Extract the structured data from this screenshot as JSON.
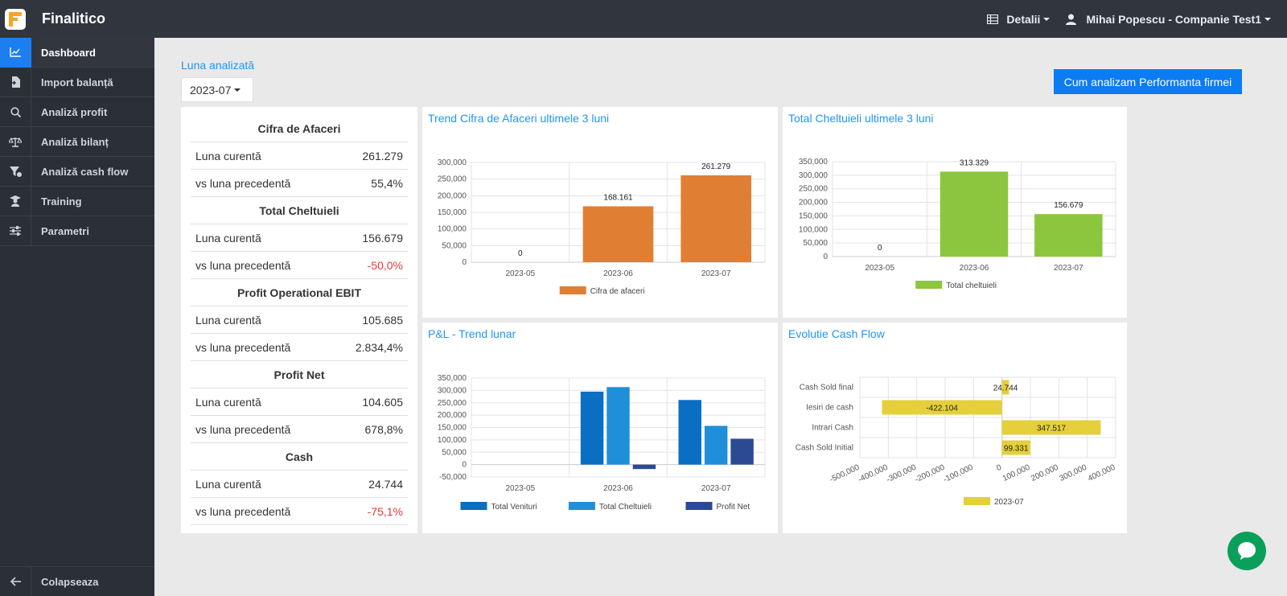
{
  "app": {
    "title": "Finalitico"
  },
  "header": {
    "details": "Detalii",
    "user": "Mihai Popescu - Companie Test1"
  },
  "sidebar": {
    "items": [
      {
        "label": "Dashboard",
        "icon": "line-chart-icon"
      },
      {
        "label": "Import balanță",
        "icon": "file-import-icon"
      },
      {
        "label": "Analiză profit",
        "icon": "search-icon"
      },
      {
        "label": "Analiză bilanț",
        "icon": "balance-scale-icon"
      },
      {
        "label": "Analiză cash flow",
        "icon": "filter-dollar-icon"
      },
      {
        "label": "Training",
        "icon": "graduation-icon"
      },
      {
        "label": "Parametri",
        "icon": "sliders-icon"
      }
    ],
    "collapse": "Colapseaza"
  },
  "month": {
    "label": "Luna analizată",
    "value": "2023-07"
  },
  "cta": "Cum analizam Performanta firmei",
  "kpi": [
    {
      "title": "Cifra de Afaceri",
      "rows": [
        {
          "label": "Luna curentă",
          "value": "261.279"
        },
        {
          "label": "vs luna precedentă",
          "value": "55,4%"
        }
      ]
    },
    {
      "title": "Total Cheltuieli",
      "rows": [
        {
          "label": "Luna curentă",
          "value": "156.679"
        },
        {
          "label": "vs luna precedentă",
          "value": "-50,0%"
        }
      ]
    },
    {
      "title": "Profit Operational EBIT",
      "rows": [
        {
          "label": "Luna curentă",
          "value": "105.685"
        },
        {
          "label": "vs luna precedentă",
          "value": "2.834,4%"
        }
      ]
    },
    {
      "title": "Profit Net",
      "rows": [
        {
          "label": "Luna curentă",
          "value": "104.605"
        },
        {
          "label": "vs luna precedentă",
          "value": "678,8%"
        }
      ]
    },
    {
      "title": "Cash",
      "rows": [
        {
          "label": "Luna curentă",
          "value": "24.744"
        },
        {
          "label": "vs luna precedentă",
          "value": "-75,1%"
        }
      ]
    }
  ],
  "colors": {
    "negative": "#e53935",
    "accent": "#2196f3"
  },
  "chart_data": [
    {
      "id": "trend-ca",
      "type": "bar",
      "title": "Trend Cifra de Afaceri ultimele 3 luni",
      "categories": [
        "2023-05",
        "2023-06",
        "2023-07"
      ],
      "series": [
        {
          "name": "Cifra de afaceri",
          "values": [
            0,
            168161,
            261279
          ],
          "color": "#e07f33"
        }
      ],
      "data_labels": [
        "0",
        "168.161",
        "261.279"
      ],
      "ylim": [
        0,
        300000
      ],
      "yticks": [
        0,
        50000,
        100000,
        150000,
        200000,
        250000,
        300000
      ],
      "ytick_labels": [
        "0",
        "50,000",
        "100,000",
        "150,000",
        "200,000",
        "250,000",
        "300,000"
      ],
      "legend": "bottom"
    },
    {
      "id": "total-chelt",
      "type": "bar",
      "title": "Total Cheltuieli ultimele 3 luni",
      "categories": [
        "2023-05",
        "2023-06",
        "2023-07"
      ],
      "series": [
        {
          "name": "Total cheltuieli",
          "values": [
            0,
            313329,
            156679
          ],
          "color": "#8cc63f"
        }
      ],
      "data_labels": [
        "0",
        "313.329",
        "156.679"
      ],
      "ylim": [
        0,
        350000
      ],
      "yticks": [
        0,
        50000,
        100000,
        150000,
        200000,
        250000,
        300000,
        350000
      ],
      "ytick_labels": [
        "0",
        "50,000",
        "100,000",
        "150,000",
        "200,000",
        "250,000",
        "300,000",
        "350,000"
      ],
      "legend": "bottom"
    },
    {
      "id": "pl-trend",
      "type": "bar",
      "title": "P&L - Trend lunar",
      "categories": [
        "2023-05",
        "2023-06",
        "2023-07"
      ],
      "series": [
        {
          "name": "Total Venituri",
          "values": [
            0,
            295000,
            261279
          ],
          "color": "#0a6fc2"
        },
        {
          "name": "Total Cheltuieli",
          "values": [
            0,
            313329,
            156679
          ],
          "color": "#1f8fd9"
        },
        {
          "name": "Profit Net",
          "values": [
            0,
            -18000,
            104605
          ],
          "color": "#2c4a94"
        }
      ],
      "ylim": [
        -50000,
        350000
      ],
      "yticks": [
        -50000,
        0,
        50000,
        100000,
        150000,
        200000,
        250000,
        300000,
        350000
      ],
      "ytick_labels": [
        "-50,000",
        "0",
        "50,000",
        "100,000",
        "150,000",
        "200,000",
        "250,000",
        "300,000",
        "350,000"
      ],
      "legend": "bottom"
    },
    {
      "id": "cash-flow",
      "type": "bar",
      "orientation": "horizontal",
      "title": "Evolutie Cash Flow",
      "categories": [
        "Cash Sold final",
        "Iesiri de cash",
        "Intrari Cash",
        "Cash Sold Initial"
      ],
      "series": [
        {
          "name": "2023-07",
          "values": [
            24744,
            -422104,
            347517,
            99331
          ],
          "color": "#e5cf3a"
        }
      ],
      "data_labels": [
        "24.744",
        "-422.104",
        "347.517",
        "99.331"
      ],
      "xlim": [
        -500000,
        400000
      ],
      "xticks": [
        -500000,
        -400000,
        -300000,
        -200000,
        -100000,
        0,
        100000,
        200000,
        300000,
        400000
      ],
      "xtick_labels": [
        "-500,000",
        "-400,000",
        "-300,000",
        "-200,000",
        "-100,000",
        "0",
        "100,000",
        "200,000",
        "300,000",
        "400,000"
      ],
      "legend": "bottom"
    }
  ]
}
